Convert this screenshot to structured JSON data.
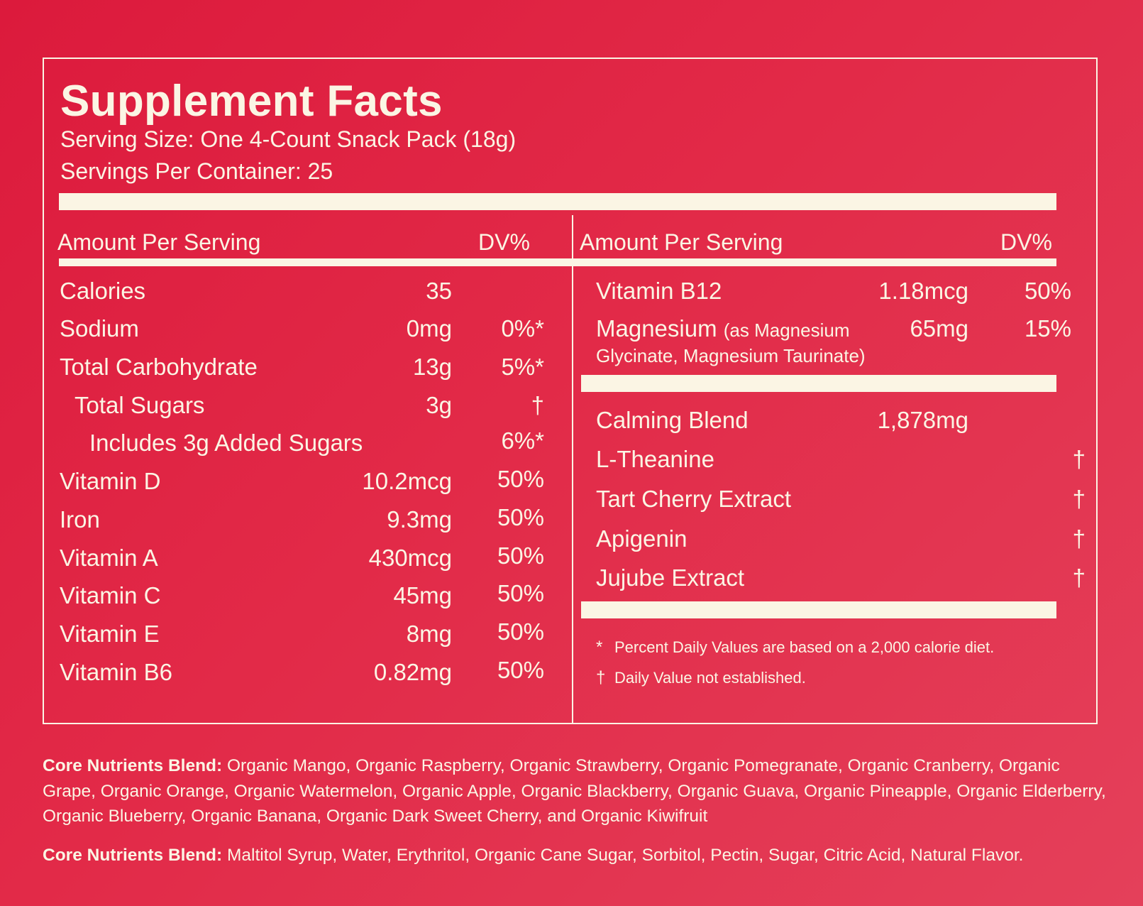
{
  "title": "Supplement Facts",
  "serving_size": "Serving Size: One 4-Count Snack Pack (18g)",
  "servings_per_container": "Servings Per Container: 25",
  "left_header": {
    "amount": "Amount Per Serving",
    "dv": "DV%"
  },
  "right_header": {
    "amount": "Amount Per Serving",
    "dv": "DV%"
  },
  "left_rows": [
    {
      "name": "Calories",
      "amount": "35",
      "dv": ""
    },
    {
      "name": "Sodium",
      "amount": "0mg",
      "dv": "0%*"
    },
    {
      "name": "Total Carbohydrate",
      "amount": "13g",
      "dv": "5%*"
    },
    {
      "name": "Total Sugars",
      "amount": "3g",
      "dv": "†"
    },
    {
      "name": "Includes 3g Added Sugars",
      "amount": "",
      "dv": "6%*"
    },
    {
      "name": "Vitamin D",
      "amount": "10.2mcg",
      "dv": "50%"
    },
    {
      "name": "Iron",
      "amount": "9.3mg",
      "dv": "50%"
    },
    {
      "name": "Vitamin A",
      "amount": "430mcg",
      "dv": "50%"
    },
    {
      "name": "Vitamin C",
      "amount": "45mg",
      "dv": "50%"
    },
    {
      "name": "Vitamin E",
      "amount": "8mg",
      "dv": "50%"
    },
    {
      "name": "Vitamin B6",
      "amount": "0.82mg",
      "dv": "50%"
    }
  ],
  "right_rows": [
    {
      "name": "Vitamin B12",
      "amount": "1.18mcg",
      "dv": "50%"
    },
    {
      "name": "Magnesium",
      "note_line1": "(as Magnesium",
      "note_line2": "Glycinate, Magnesium Taurinate)",
      "amount": "65mg",
      "dv": "15%"
    }
  ],
  "blend": {
    "name": "Calming Blend",
    "amount": "1,878mg",
    "items": [
      {
        "name": "L-Theanine",
        "dv": "†"
      },
      {
        "name": "Tart Cherry Extract",
        "dv": "†"
      },
      {
        "name": "Apigenin",
        "dv": "†"
      },
      {
        "name": "Jujube Extract",
        "dv": "†"
      }
    ]
  },
  "footnotes": [
    {
      "mark": "*",
      "text": "Percent Daily Values are based on a 2,000 calorie diet."
    },
    {
      "mark": "†",
      "text": "Daily Value not established."
    }
  ],
  "ingredients": [
    {
      "label": "Core Nutrients Blend:",
      "text": " Organic Mango, Organic Raspberry, Organic Strawberry, Organic Pomegranate, Organic Cranberry, Organic Grape, Organic Orange, Organic Watermelon, Organic Apple, Organic Blackberry, Organic Guava, Organic Pineapple, Organic Elderberry, Organic Blueberry, Organic Banana, Organic Dark Sweet Cherry, and Organic Kiwifruit"
    },
    {
      "label": "Core Nutrients Blend:",
      "text": " Maltitol Syrup, Water, Erythritol, Organic Cane Sugar, Sorbitol, Pectin, Sugar, Citric Acid, Natural Flavor."
    }
  ]
}
